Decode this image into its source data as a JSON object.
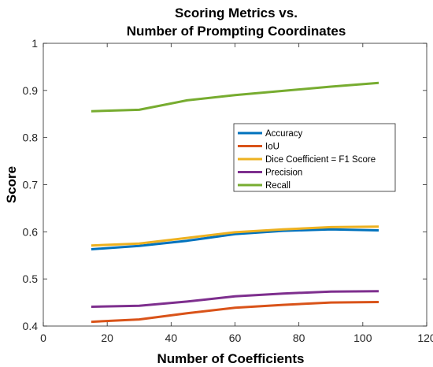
{
  "chart_data": {
    "type": "line",
    "title": [
      "Scoring Metrics vs.",
      "Number of Prompting Coordinates"
    ],
    "xlabel": "Number of Coefficients",
    "ylabel": "Score",
    "xlim": [
      0,
      120
    ],
    "ylim": [
      0.4,
      1
    ],
    "xticks": [
      0,
      20,
      40,
      60,
      80,
      100,
      120
    ],
    "yticks": [
      0.4,
      0.5,
      0.6,
      0.7,
      0.8,
      0.9,
      1
    ],
    "ytick_labels": [
      "0.4",
      "0.5",
      "0.6",
      "0.7",
      "0.8",
      "0.9",
      "1"
    ],
    "grid": false,
    "legend_position": "right",
    "x": [
      15,
      30,
      45,
      60,
      75,
      90,
      105
    ],
    "series": [
      {
        "name": "Accuracy",
        "color": "#0072BD",
        "values": [
          0.563,
          0.57,
          0.581,
          0.595,
          0.602,
          0.605,
          0.603
        ]
      },
      {
        "name": "IoU",
        "color": "#D95319",
        "values": [
          0.409,
          0.414,
          0.427,
          0.439,
          0.445,
          0.45,
          0.451
        ]
      },
      {
        "name": "Dice Coefficient = F1 Score",
        "color": "#EDB120",
        "values": [
          0.571,
          0.575,
          0.587,
          0.599,
          0.605,
          0.61,
          0.611
        ]
      },
      {
        "name": "Precision",
        "color": "#7E2F8E",
        "values": [
          0.441,
          0.443,
          0.452,
          0.463,
          0.469,
          0.473,
          0.474
        ]
      },
      {
        "name": "Recall",
        "color": "#77AC30",
        "values": [
          0.856,
          0.859,
          0.879,
          0.89,
          0.899,
          0.908,
          0.916
        ]
      }
    ]
  }
}
